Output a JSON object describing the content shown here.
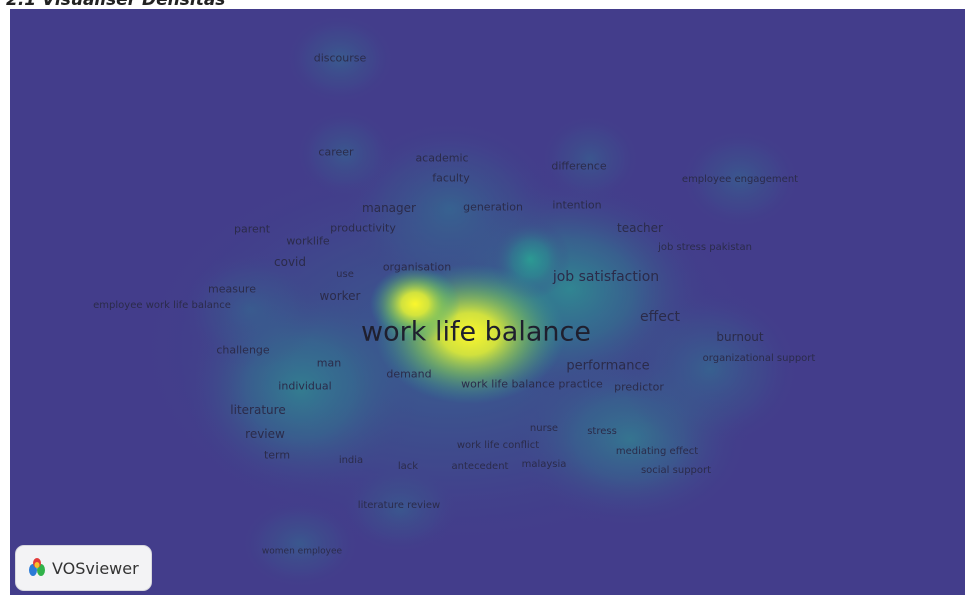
{
  "heading": "2.1 Visualiser Densitas",
  "badge": {
    "label": "VOSviewer",
    "icon": "vosviewer-logo-icon"
  },
  "colors": {
    "background": "#433d8b",
    "high_density": "#f5f228",
    "mid_density": "#26a69a",
    "text": "#2b2b4a"
  },
  "keywords": [
    {
      "text": "discourse",
      "size": 11
    },
    {
      "text": "career",
      "size": 11
    },
    {
      "text": "academic",
      "size": 11
    },
    {
      "text": "faculty",
      "size": 11
    },
    {
      "text": "difference",
      "size": 11
    },
    {
      "text": "employee engagement",
      "size": 10
    },
    {
      "text": "manager",
      "size": 12
    },
    {
      "text": "generation",
      "size": 11
    },
    {
      "text": "intention",
      "size": 11
    },
    {
      "text": "parent",
      "size": 11
    },
    {
      "text": "productivity",
      "size": 11
    },
    {
      "text": "worklife",
      "size": 11
    },
    {
      "text": "teacher",
      "size": 12
    },
    {
      "text": "job stress pakistan",
      "size": 10
    },
    {
      "text": "covid",
      "size": 12
    },
    {
      "text": "use",
      "size": 10
    },
    {
      "text": "organisation",
      "size": 11
    },
    {
      "text": "job satisfaction",
      "size": 14
    },
    {
      "text": "measure",
      "size": 11
    },
    {
      "text": "worker",
      "size": 12
    },
    {
      "text": "employee work life balance",
      "size": 10
    },
    {
      "text": "effect",
      "size": 14
    },
    {
      "text": "work life balance",
      "size": 27
    },
    {
      "text": "burnout",
      "size": 12
    },
    {
      "text": "challenge",
      "size": 11
    },
    {
      "text": "organizational support",
      "size": 10
    },
    {
      "text": "man",
      "size": 11
    },
    {
      "text": "demand",
      "size": 11
    },
    {
      "text": "performance",
      "size": 13
    },
    {
      "text": "individual",
      "size": 11
    },
    {
      "text": "work life balance practice",
      "size": 11
    },
    {
      "text": "predictor",
      "size": 11
    },
    {
      "text": "literature",
      "size": 12
    },
    {
      "text": "nurse",
      "size": 10
    },
    {
      "text": "stress",
      "size": 10
    },
    {
      "text": "review",
      "size": 12
    },
    {
      "text": "work life conflict",
      "size": 10
    },
    {
      "text": "mediating effect",
      "size": 10
    },
    {
      "text": "term",
      "size": 11
    },
    {
      "text": "india",
      "size": 10
    },
    {
      "text": "lack",
      "size": 10
    },
    {
      "text": "antecedent",
      "size": 10
    },
    {
      "text": "malaysia",
      "size": 10
    },
    {
      "text": "social support",
      "size": 10
    },
    {
      "text": "literature review",
      "size": 10
    },
    {
      "text": "women employee",
      "size": 9
    }
  ]
}
